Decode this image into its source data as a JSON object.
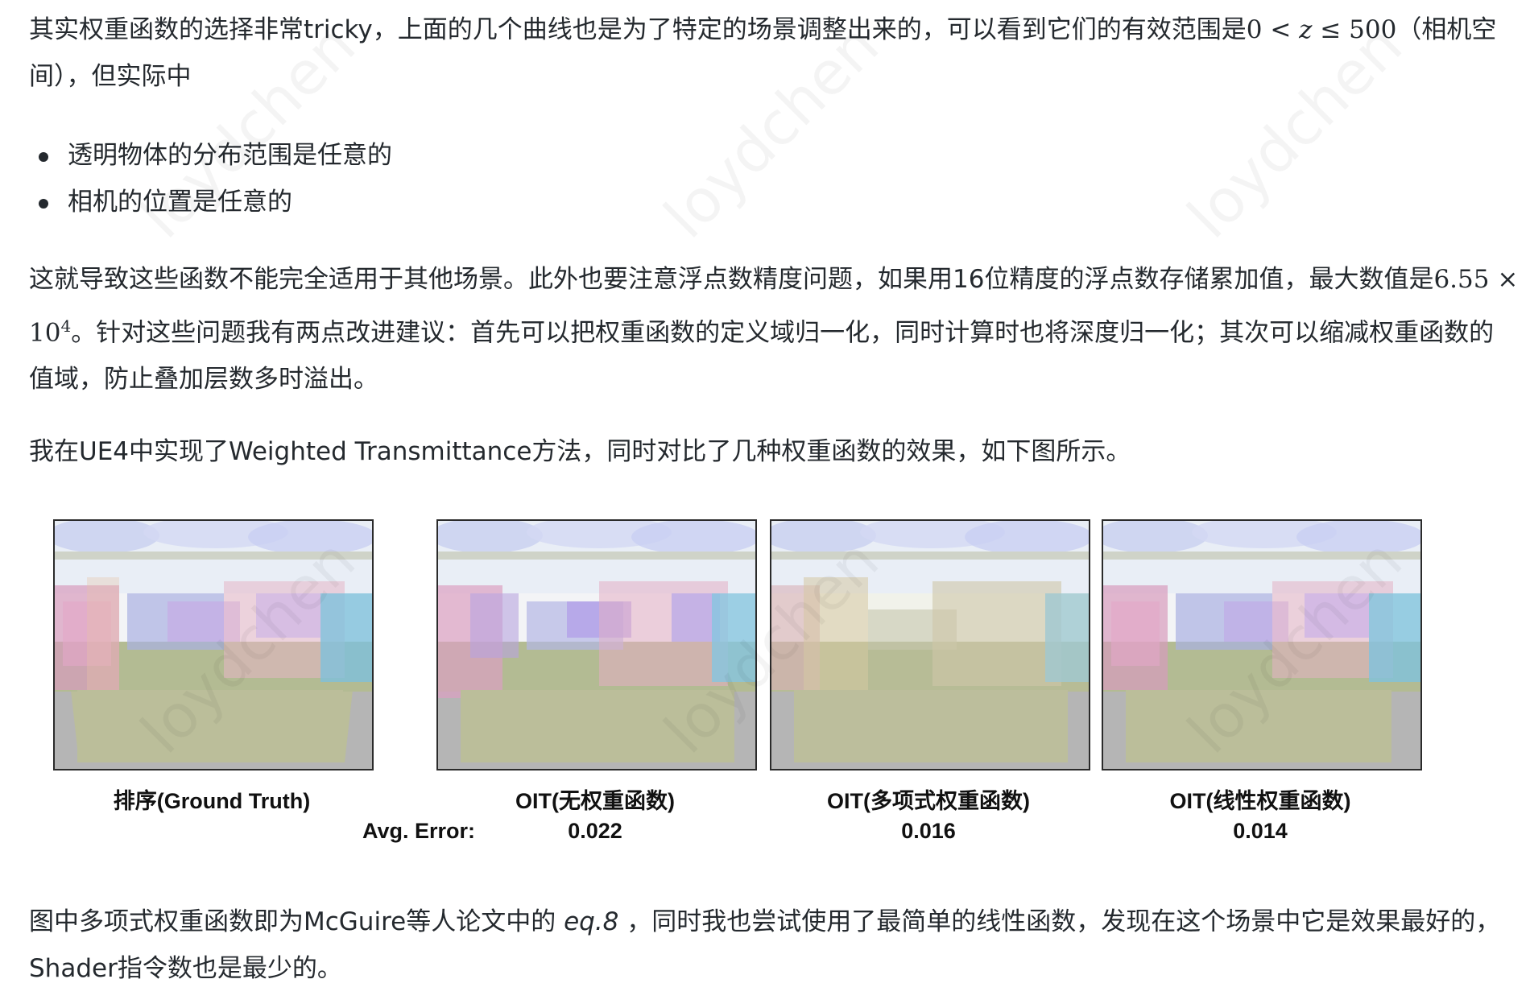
{
  "paragraph1": {
    "before": "其实权重函数的选择非常tricky，上面的几个曲线也是为了特定的场景调整出来的，可以看到它们的有效范围是",
    "math_a": "0 < ",
    "math_var": "z",
    "math_b": " ≤ 500",
    "after": "（相机空间），但实际中"
  },
  "bullets": [
    "透明物体的分布范围是任意的",
    "相机的位置是任意的"
  ],
  "paragraph2": {
    "before": "这就导致这些函数不能完全适用于其他场景。此外也要注意浮点数精度问题，如果用16位精度的浮点数存储累加值，最大数值是",
    "math_base": "6.55 × 10",
    "math_exp": "4",
    "after": "。针对这些问题我有两点改进建议：首先可以把权重函数的定义域归一化，同时计算时也将深度归一化；其次可以缩减权重函数的值域，防止叠加层数多时溢出。"
  },
  "paragraph3": "我在UE4中实现了Weighted Transmittance方法，同时对比了几种权重函数的效果，如下图所示。",
  "figure": {
    "avg_error_label": "Avg. Error:",
    "panels": [
      {
        "caption": "排序(Ground Truth)",
        "error": ""
      },
      {
        "caption": "OIT(无权重函数)",
        "error": "0.022"
      },
      {
        "caption": "OIT(多项式权重函数)",
        "error": "0.016"
      },
      {
        "caption": "OIT(线性权重函数)",
        "error": "0.014"
      }
    ]
  },
  "paragraph4": {
    "before": "图中多项式权重函数即为McGuire等人论文中的 ",
    "emph": "eq.8",
    "after": " ，同时我也尝试使用了最简单的线性函数，发现在这个场景中它是效果最好的，Shader指令数也是最少的。"
  },
  "watermark": "loydchen"
}
